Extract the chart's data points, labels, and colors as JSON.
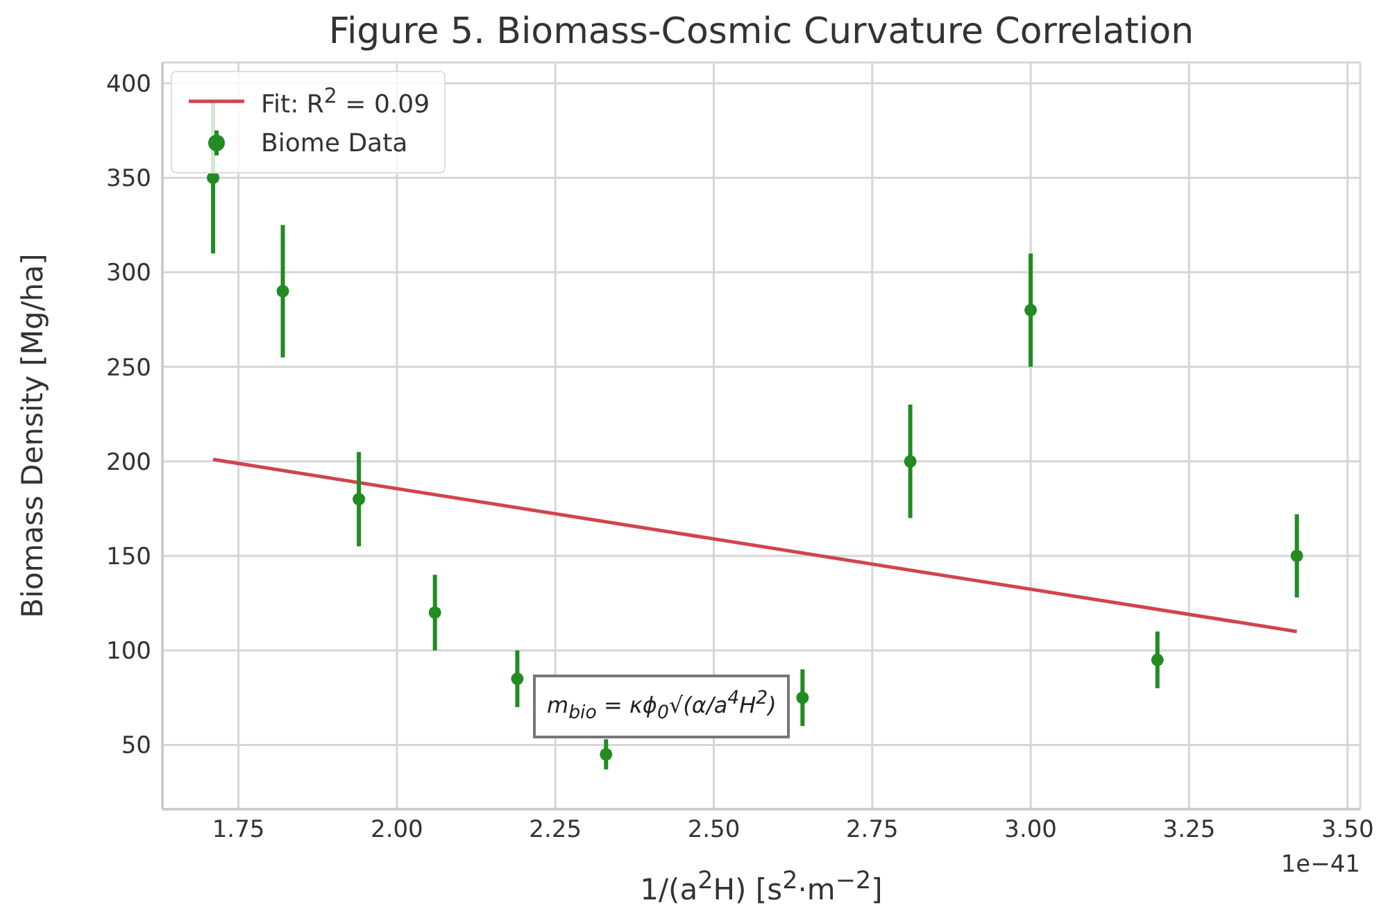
{
  "chart_data": {
    "type": "scatter",
    "title": "Figure 5. Biomass-Cosmic Curvature Correlation",
    "xlabel": "1/(a$^{2}$H) [s$^{2}$·m$^{−2}$]",
    "ylabel": "Biomass Density [Mg/ha]",
    "annotations": [
      "m$_{bio}$ = κϕ$_{0}$√(α/a$^{4}$H$^{2}$)",
      "1e−41"
    ],
    "xlim": [
      1.63,
      3.52
    ],
    "xticks": [
      1.75,
      {
        "value": 2,
        "label": "2.00"
      },
      2.25,
      {
        "value": 2.5,
        "label": "2.50"
      },
      2.75,
      {
        "value": 3,
        "label": "3.00"
      },
      3.25,
      {
        "value": 3.5,
        "label": "3.50"
      }
    ],
    "ylim": [
      16,
      411
    ],
    "yticks": [
      50,
      100,
      150,
      200,
      250,
      300,
      350,
      400
    ],
    "grid": true,
    "legend": "top left",
    "series": [
      {
        "type": "line",
        "name": "Fit: R$^{2}$ = 0.09",
        "color": "#d0454c",
        "x": [
          1.71,
          3.42
        ],
        "values": [
          201,
          110
        ]
      },
      {
        "type": "scatter",
        "name": "Biome Data",
        "color": "#228b22",
        "marker": "circle",
        "x": [
          1.71,
          1.82,
          1.94,
          2.06,
          2.19,
          2.33,
          2.64,
          2.81,
          3.0,
          3.2,
          3.42
        ],
        "values": [
          350,
          290,
          180,
          120,
          85,
          45,
          75,
          200,
          280,
          95,
          150
        ],
        "errors": [
          40,
          35,
          25,
          20,
          15,
          8,
          15,
          30,
          30,
          15,
          22
        ]
      }
    ]
  }
}
